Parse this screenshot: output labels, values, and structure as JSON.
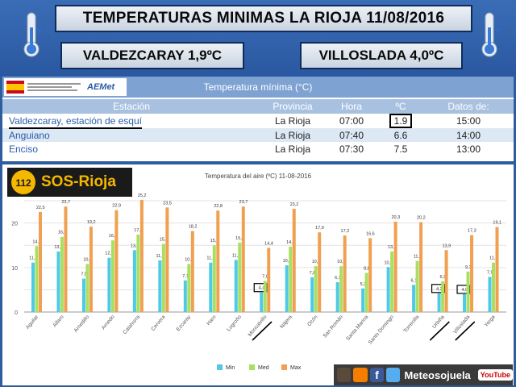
{
  "header": {
    "title": "TEMPERATURAS  MINIMAS  LA RIOJA 11/08/2016",
    "left_value": "VALDEZCARAY 1,9ºC",
    "right_value": "VILLOSLADA 4,0ºC"
  },
  "table": {
    "caption": "Temperatura mínima (°C)",
    "headers": [
      "Estación",
      "Provincia",
      "Hora",
      "ºC",
      "Datos de:"
    ],
    "rows": [
      {
        "station": "Valdezcaray, estación de esquí",
        "province": "La Rioja",
        "time": "07:00",
        "temp": "1.9",
        "data_time": "15:00"
      },
      {
        "station": "Anguiano",
        "province": "La Rioja",
        "time": "07:40",
        "temp": "6.6",
        "data_time": "14:00"
      },
      {
        "station": "Enciso",
        "province": "La Rioja",
        "time": "07:30",
        "temp": "7.5",
        "data_time": "13:00"
      }
    ]
  },
  "logos": {
    "aemet": "AEMet",
    "sos": "SOS-Rioja",
    "sos_number": "112"
  },
  "social": {
    "name": "Meteosojuela",
    "youtube": "YouTube"
  },
  "chart_data": {
    "type": "bar",
    "title": "Temperatura del aire (ºC) 11-08-2016",
    "categories": [
      "Aguilar",
      "Alfaro",
      "Arnedillo",
      "Arnedo",
      "Calahorra",
      "Cervera",
      "Ezcaray",
      "Haro",
      "Logroño",
      "Moncalvillo",
      "Nájera",
      "Ocón",
      "San Román",
      "Santa Marina",
      "Santo Domingo",
      "Torrecilla",
      "Urbiña",
      "Villoslada",
      "Yerga"
    ],
    "series": [
      {
        "name": "Min",
        "color": "#4ec9e6",
        "values": [
          11.1,
          13.6,
          7.5,
          12.2,
          13.9,
          11.6,
          7.1,
          11.1,
          11.7,
          4.4,
          10.5,
          7.8,
          6.7,
          5.3,
          10.1,
          6.1,
          4.2,
          4.0,
          7.9
        ],
        "labels": [
          "11,1",
          "13,6",
          "7,5",
          "12,2",
          "13,9",
          "11,6",
          "7,1",
          "11,1",
          "11,7",
          "4,4",
          "10,5",
          "7,8",
          "6,7",
          "5,3",
          "10,1",
          "6,1",
          "4,2",
          "4,0",
          "7,9"
        ]
      },
      {
        "name": "Med",
        "color": "#a8e063",
        "values": [
          14.8,
          16.9,
          10.8,
          16.1,
          17.4,
          15.3,
          10.8,
          15.0,
          15.6,
          7.0,
          14.7,
          10.3,
          10.3,
          8.8,
          13.6,
          11.5,
          6.9,
          9.1,
          11.1
        ],
        "labels": [
          "14,8",
          "16,9",
          "10,8",
          "16,1",
          "17,4",
          "15,3",
          "10,8",
          "15,0",
          "15,6",
          "7,0",
          "14,7",
          "10,3",
          "10,3",
          "8,8",
          "13,6",
          "11,5",
          "6,9",
          "9,1",
          "11,1"
        ]
      },
      {
        "name": "Max",
        "color": "#f0a050",
        "values": [
          22.5,
          23.7,
          19.2,
          22.9,
          25.2,
          23.5,
          18.2,
          22.8,
          23.7,
          14.4,
          23.2,
          17.9,
          17.2,
          16.6,
          20.3,
          20.2,
          13.9,
          17.3,
          19.1
        ],
        "labels": [
          "22,5",
          "23,7",
          "19,2",
          "22,9",
          "25,2",
          "23,5",
          "18,2",
          "22,8",
          "23,7",
          "14,4",
          "23,2",
          "17,9",
          "17,2",
          "16,6",
          "20,3",
          "20,2",
          "13,9",
          "17,3",
          "19,1"
        ]
      }
    ],
    "highlight_categories": [
      "Moncalvillo",
      "Urbiña",
      "Villoslada"
    ],
    "yticks": [
      0,
      10,
      20
    ],
    "ylim": [
      0,
      27
    ],
    "grid": true,
    "legend": "bottom"
  }
}
